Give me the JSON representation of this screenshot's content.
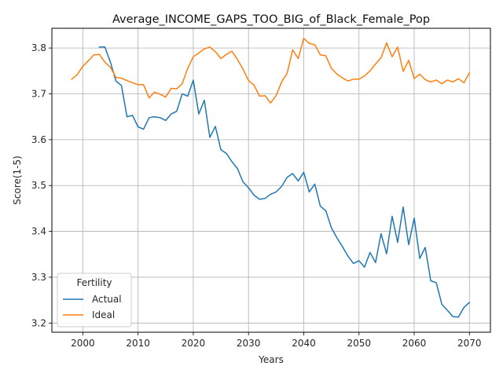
{
  "chart_data": {
    "type": "line",
    "title": "Average_INCOME_GAPS_TOO_BIG_of_Black_Female_Pop",
    "xlabel": "Years",
    "ylabel": "Score(1-5)",
    "xlim": [
      1994.4,
      2073.8
    ],
    "ylim": [
      3.18,
      3.843
    ],
    "x_ticks": [
      2000,
      2010,
      2020,
      2030,
      2040,
      2050,
      2060,
      2070
    ],
    "y_ticks": [
      3.2,
      3.3,
      3.4,
      3.5,
      3.6,
      3.7,
      3.8
    ],
    "y_tick_labels": [
      "3.2",
      "3.3",
      "3.4",
      "3.5",
      "3.6",
      "3.7",
      "3.8"
    ],
    "grid": true,
    "legend": {
      "title": "Fertility",
      "location": "lower-left"
    },
    "series": [
      {
        "name": "Actual",
        "color": "#1f77b4",
        "points": [
          [
            2003,
            3.802
          ],
          [
            2004,
            3.802
          ],
          [
            2005,
            3.769
          ],
          [
            2006,
            3.728
          ],
          [
            2007,
            3.718
          ],
          [
            2008,
            3.65
          ],
          [
            2009,
            3.653
          ],
          [
            2010,
            3.628
          ],
          [
            2011,
            3.623
          ],
          [
            2012,
            3.648
          ],
          [
            2013,
            3.65
          ],
          [
            2014,
            3.648
          ],
          [
            2015,
            3.642
          ],
          [
            2016,
            3.656
          ],
          [
            2017,
            3.662
          ],
          [
            2018,
            3.7
          ],
          [
            2019,
            3.695
          ],
          [
            2020,
            3.73
          ],
          [
            2021,
            3.656
          ],
          [
            2022,
            3.686
          ],
          [
            2023,
            3.605
          ],
          [
            2024,
            3.629
          ],
          [
            2025,
            3.578
          ],
          [
            2026,
            3.57
          ],
          [
            2027,
            3.552
          ],
          [
            2028,
            3.537
          ],
          [
            2029,
            3.508
          ],
          [
            2030,
            3.495
          ],
          [
            2031,
            3.479
          ],
          [
            2032,
            3.47
          ],
          [
            2033,
            3.472
          ],
          [
            2034,
            3.481
          ],
          [
            2035,
            3.486
          ],
          [
            2036,
            3.498
          ],
          [
            2037,
            3.518
          ],
          [
            2038,
            3.526
          ],
          [
            2039,
            3.51
          ],
          [
            2040,
            3.529
          ],
          [
            2041,
            3.486
          ],
          [
            2042,
            3.503
          ],
          [
            2043,
            3.455
          ],
          [
            2044,
            3.445
          ],
          [
            2045,
            3.408
          ],
          [
            2046,
            3.386
          ],
          [
            2047,
            3.367
          ],
          [
            2048,
            3.346
          ],
          [
            2049,
            3.33
          ],
          [
            2050,
            3.336
          ],
          [
            2051,
            3.322
          ],
          [
            2052,
            3.354
          ],
          [
            2053,
            3.332
          ],
          [
            2054,
            3.395
          ],
          [
            2055,
            3.351
          ],
          [
            2056,
            3.433
          ],
          [
            2057,
            3.376
          ],
          [
            2058,
            3.453
          ],
          [
            2059,
            3.371
          ],
          [
            2060,
            3.429
          ],
          [
            2061,
            3.341
          ],
          [
            2062,
            3.365
          ],
          [
            2063,
            3.292
          ],
          [
            2064,
            3.288
          ],
          [
            2065,
            3.241
          ],
          [
            2066,
            3.228
          ],
          [
            2067,
            3.214
          ],
          [
            2068,
            3.213
          ],
          [
            2069,
            3.234
          ],
          [
            2070,
            3.245
          ]
        ]
      },
      {
        "name": "Ideal",
        "color": "#ff7f0e",
        "points": [
          [
            1998,
            3.732
          ],
          [
            1999,
            3.742
          ],
          [
            2000,
            3.76
          ],
          [
            2001,
            3.772
          ],
          [
            2002,
            3.785
          ],
          [
            2003,
            3.786
          ],
          [
            2004,
            3.769
          ],
          [
            2005,
            3.758
          ],
          [
            2006,
            3.736
          ],
          [
            2007,
            3.734
          ],
          [
            2008,
            3.729
          ],
          [
            2009,
            3.724
          ],
          [
            2010,
            3.72
          ],
          [
            2011,
            3.72
          ],
          [
            2012,
            3.691
          ],
          [
            2013,
            3.704
          ],
          [
            2014,
            3.699
          ],
          [
            2015,
            3.693
          ],
          [
            2016,
            3.712
          ],
          [
            2017,
            3.711
          ],
          [
            2018,
            3.722
          ],
          [
            2019,
            3.756
          ],
          [
            2020,
            3.781
          ],
          [
            2021,
            3.789
          ],
          [
            2022,
            3.798
          ],
          [
            2023,
            3.802
          ],
          [
            2024,
            3.792
          ],
          [
            2025,
            3.777
          ],
          [
            2026,
            3.786
          ],
          [
            2027,
            3.793
          ],
          [
            2028,
            3.775
          ],
          [
            2029,
            3.754
          ],
          [
            2030,
            3.729
          ],
          [
            2031,
            3.719
          ],
          [
            2032,
            3.695
          ],
          [
            2033,
            3.696
          ],
          [
            2034,
            3.68
          ],
          [
            2035,
            3.696
          ],
          [
            2036,
            3.726
          ],
          [
            2037,
            3.745
          ],
          [
            2038,
            3.796
          ],
          [
            2039,
            3.777
          ],
          [
            2040,
            3.821
          ],
          [
            2041,
            3.81
          ],
          [
            2042,
            3.807
          ],
          [
            2043,
            3.785
          ],
          [
            2044,
            3.783
          ],
          [
            2045,
            3.756
          ],
          [
            2046,
            3.743
          ],
          [
            2047,
            3.735
          ],
          [
            2048,
            3.728
          ],
          [
            2049,
            3.732
          ],
          [
            2050,
            3.732
          ],
          [
            2051,
            3.739
          ],
          [
            2052,
            3.75
          ],
          [
            2053,
            3.765
          ],
          [
            2054,
            3.779
          ],
          [
            2055,
            3.811
          ],
          [
            2056,
            3.781
          ],
          [
            2057,
            3.802
          ],
          [
            2058,
            3.749
          ],
          [
            2059,
            3.773
          ],
          [
            2060,
            3.733
          ],
          [
            2061,
            3.743
          ],
          [
            2062,
            3.731
          ],
          [
            2063,
            3.726
          ],
          [
            2064,
            3.73
          ],
          [
            2065,
            3.722
          ],
          [
            2066,
            3.73
          ],
          [
            2067,
            3.726
          ],
          [
            2068,
            3.733
          ],
          [
            2069,
            3.724
          ],
          [
            2070,
            3.746
          ]
        ]
      }
    ]
  }
}
